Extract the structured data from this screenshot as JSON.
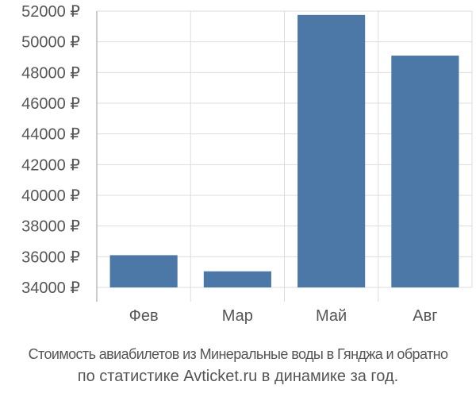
{
  "chart_data": {
    "type": "bar",
    "categories": [
      "Фев",
      "Мар",
      "Май",
      "Авг"
    ],
    "values": [
      36100,
      35050,
      51750,
      49100
    ],
    "ylim": [
      34000,
      52000
    ],
    "yticks": [
      34000,
      36000,
      38000,
      40000,
      42000,
      44000,
      46000,
      48000,
      50000,
      52000
    ],
    "tick_suffix": " ₽",
    "grid": true,
    "bar_color": "#4c78a8",
    "grid_color": "#dddddd",
    "axis_color": "#999999",
    "label_color": "#555555"
  },
  "caption": {
    "line1": "Стоимость авиабилетов из Минеральные воды в Гянджа и обратно",
    "line2": "по статистике Avticket.ru в динамике за год."
  }
}
